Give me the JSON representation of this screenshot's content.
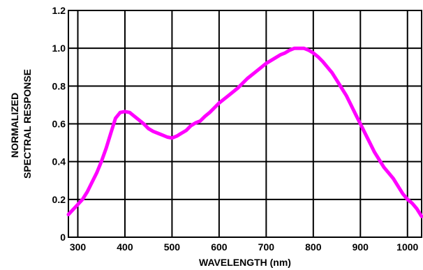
{
  "chart_data": {
    "type": "line",
    "title": "",
    "xlabel": "WAVELENGTH (nm)",
    "ylabel_lines": [
      "NORMALIZED",
      "SPECTRAL RESPONSE"
    ],
    "xlim": [
      280,
      1030
    ],
    "ylim": [
      0,
      1.2
    ],
    "x_ticks": [
      300,
      400,
      500,
      600,
      700,
      800,
      900,
      1000
    ],
    "y_ticks": [
      0,
      0.2,
      0.4,
      0.6,
      0.8,
      1.0,
      1.2
    ],
    "x_tick_labels": [
      "300",
      "400",
      "500",
      "600",
      "700",
      "800",
      "900",
      "1000"
    ],
    "y_tick_labels": [
      "0",
      "0.2",
      "0.4",
      "0.6",
      "0.8",
      "1.0",
      "1.2"
    ],
    "grid": true,
    "legend": "none",
    "series": [
      {
        "color": "#ff00ff",
        "x": [
          280,
          295,
          310,
          320,
          330,
          340,
          350,
          360,
          370,
          380,
          390,
          400,
          410,
          420,
          430,
          440,
          450,
          460,
          470,
          480,
          490,
          500,
          510,
          520,
          530,
          540,
          550,
          560,
          570,
          580,
          590,
          600,
          620,
          640,
          660,
          680,
          700,
          720,
          730,
          740,
          750,
          760,
          770,
          780,
          790,
          800,
          810,
          820,
          830,
          840,
          850,
          860,
          870,
          880,
          890,
          900,
          910,
          920,
          930,
          940,
          950,
          960,
          970,
          980,
          990,
          1000,
          1010,
          1020,
          1030
        ],
        "y": [
          0.12,
          0.16,
          0.2,
          0.24,
          0.29,
          0.34,
          0.4,
          0.47,
          0.55,
          0.63,
          0.66,
          0.665,
          0.66,
          0.64,
          0.62,
          0.6,
          0.575,
          0.56,
          0.55,
          0.54,
          0.53,
          0.525,
          0.535,
          0.55,
          0.565,
          0.59,
          0.605,
          0.615,
          0.64,
          0.66,
          0.685,
          0.71,
          0.75,
          0.79,
          0.84,
          0.88,
          0.92,
          0.95,
          0.965,
          0.975,
          0.99,
          1.0,
          1.0,
          1.0,
          0.99,
          0.975,
          0.955,
          0.93,
          0.9,
          0.87,
          0.83,
          0.79,
          0.75,
          0.7,
          0.65,
          0.6,
          0.55,
          0.5,
          0.45,
          0.41,
          0.37,
          0.34,
          0.31,
          0.27,
          0.23,
          0.2,
          0.18,
          0.15,
          0.11
        ]
      }
    ]
  }
}
